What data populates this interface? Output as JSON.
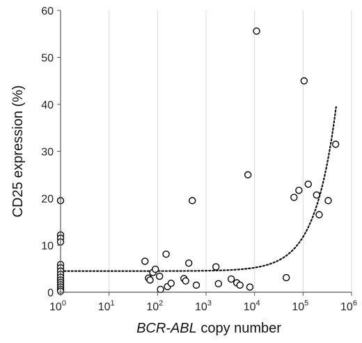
{
  "chart_data": {
    "type": "scatter",
    "title": "",
    "xlabel_italic": "BCR-ABL",
    "xlabel_rest": " copy number",
    "ylabel": "CD25 expression (%)",
    "x_scale": "log10",
    "xlim": [
      1,
      1000000
    ],
    "ylim": [
      0,
      60
    ],
    "x_ticks": [
      {
        "base": "10",
        "exp": "0"
      },
      {
        "base": "10",
        "exp": "1"
      },
      {
        "base": "10",
        "exp": "2"
      },
      {
        "base": "10",
        "exp": "3"
      },
      {
        "base": "10",
        "exp": "4"
      },
      {
        "base": "10",
        "exp": "5"
      },
      {
        "base": "10",
        "exp": "6"
      }
    ],
    "y_ticks": [
      "0",
      "10",
      "20",
      "30",
      "40",
      "50",
      "60"
    ],
    "grid": "vertical",
    "trendline": "dotted",
    "points": [
      {
        "x": 1,
        "y": 19.5
      },
      {
        "x": 1,
        "y": 12.2
      },
      {
        "x": 1,
        "y": 11.5
      },
      {
        "x": 1,
        "y": 10.7
      },
      {
        "x": 1,
        "y": 5.9
      },
      {
        "x": 1,
        "y": 5.2
      },
      {
        "x": 1,
        "y": 4.5
      },
      {
        "x": 1,
        "y": 3.8
      },
      {
        "x": 1,
        "y": 3.2
      },
      {
        "x": 1,
        "y": 2.6
      },
      {
        "x": 1,
        "y": 2.1
      },
      {
        "x": 1,
        "y": 1.6
      },
      {
        "x": 1,
        "y": 1.1
      },
      {
        "x": 1,
        "y": 0.6
      },
      {
        "x": 1,
        "y": 0.2
      },
      {
        "x": 55,
        "y": 6.6
      },
      {
        "x": 65,
        "y": 3.0
      },
      {
        "x": 70,
        "y": 2.6
      },
      {
        "x": 80,
        "y": 4.2
      },
      {
        "x": 90,
        "y": 4.9
      },
      {
        "x": 110,
        "y": 3.4
      },
      {
        "x": 115,
        "y": 0.6
      },
      {
        "x": 150,
        "y": 8.1
      },
      {
        "x": 160,
        "y": 1.2
      },
      {
        "x": 190,
        "y": 1.9
      },
      {
        "x": 350,
        "y": 2.9
      },
      {
        "x": 380,
        "y": 2.4
      },
      {
        "x": 440,
        "y": 6.2
      },
      {
        "x": 520,
        "y": 19.5
      },
      {
        "x": 630,
        "y": 1.5
      },
      {
        "x": 1600,
        "y": 5.4
      },
      {
        "x": 1800,
        "y": 1.8
      },
      {
        "x": 3300,
        "y": 2.8
      },
      {
        "x": 4300,
        "y": 2.0
      },
      {
        "x": 5000,
        "y": 1.5
      },
      {
        "x": 7300,
        "y": 25.0
      },
      {
        "x": 8000,
        "y": 1.1
      },
      {
        "x": 11000,
        "y": 55.6
      },
      {
        "x": 45000,
        "y": 3.1
      },
      {
        "x": 65000,
        "y": 20.2
      },
      {
        "x": 82000,
        "y": 21.7
      },
      {
        "x": 105000,
        "y": 45.0
      },
      {
        "x": 128000,
        "y": 23.0
      },
      {
        "x": 190000,
        "y": 20.7
      },
      {
        "x": 215000,
        "y": 16.5
      },
      {
        "x": 330000,
        "y": 19.5
      },
      {
        "x": 470000,
        "y": 31.5
      }
    ],
    "trend_fit": {
      "intercept": 4.5,
      "coefficient": 7.28e-05,
      "x_end": 480000
    }
  }
}
